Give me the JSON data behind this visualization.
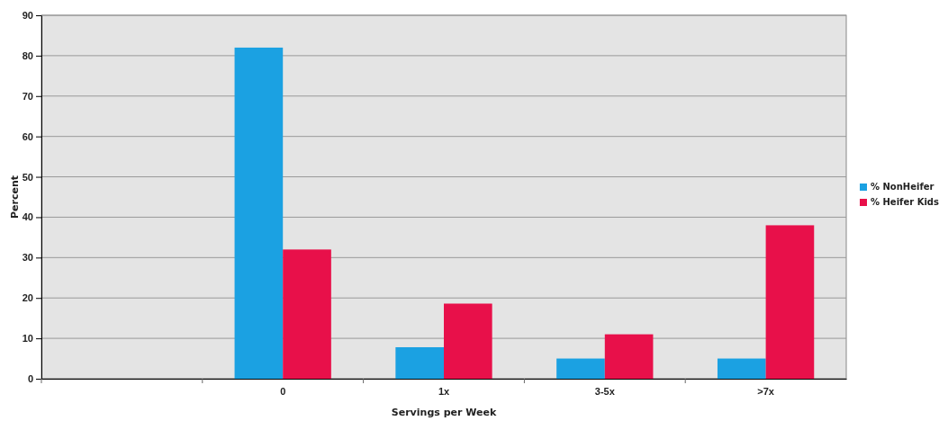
{
  "chart_data": {
    "type": "bar",
    "xlabel": "Servings per Week",
    "ylabel": "Percent",
    "categories": [
      null,
      "0",
      "1x",
      "3-5x",
      ">7x"
    ],
    "series": [
      {
        "name": "% NonHeifer",
        "color": "#1ba1e2",
        "values": [
          null,
          82,
          7.8,
          5,
          5
        ]
      },
      {
        "name": "% Heifer Kids",
        "color": "#e8104a",
        "values": [
          null,
          32,
          18.6,
          11,
          38
        ]
      }
    ],
    "ylim": [
      0,
      90
    ],
    "yticks": [
      0,
      10,
      20,
      30,
      40,
      50,
      60,
      70,
      80,
      90
    ],
    "grid": "y",
    "legend": "right"
  }
}
